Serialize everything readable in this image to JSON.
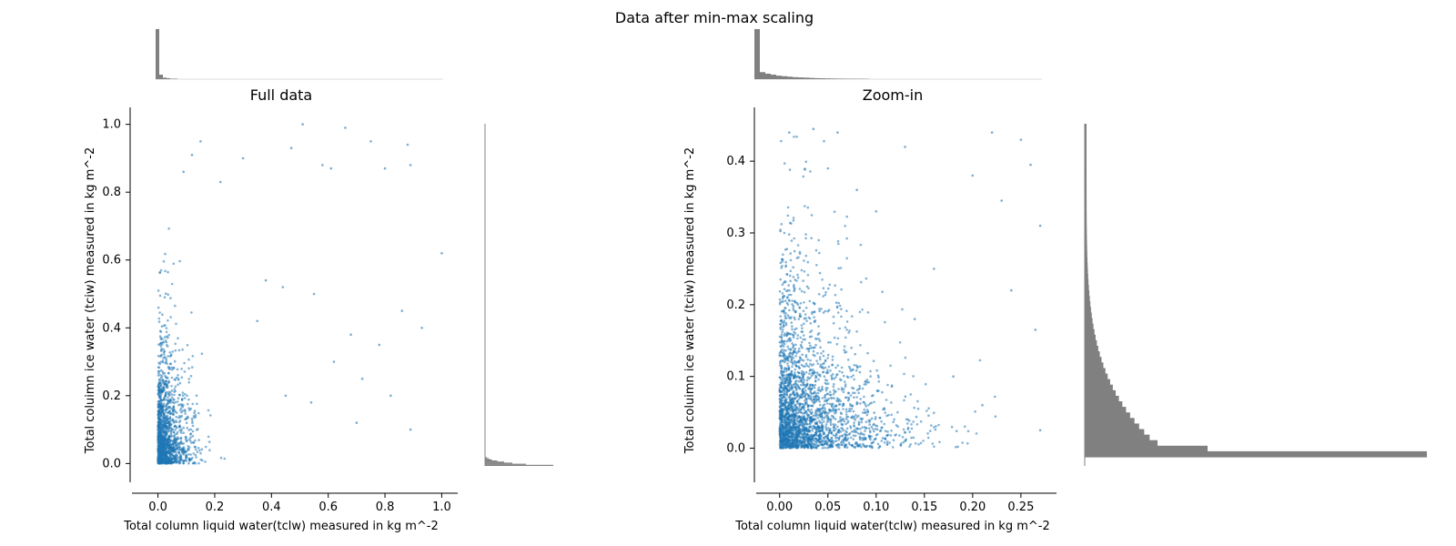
{
  "figure": {
    "suptitle": "Data after min-max scaling",
    "colors": {
      "points": "#1f77b4",
      "hist": "#808080"
    }
  },
  "chart_data": [
    {
      "type": "scatter",
      "title": "Full data",
      "xlabel": "Total column liquid water(tclw) measured in kg m^-2",
      "ylabel": "Total coluimn ice water (tciw) measured in kg m^-2",
      "xlim": [
        -0.05,
        1.05
      ],
      "ylim": [
        -0.05,
        1.05
      ],
      "xticks": [
        0.0,
        0.2,
        0.4,
        0.6,
        0.8,
        1.0
      ],
      "yticks": [
        0.0,
        0.2,
        0.4,
        0.6,
        0.8,
        1.0
      ],
      "xtick_labels": [
        "0.0",
        "0.2",
        "0.4",
        "0.6",
        "0.8",
        "1.0"
      ],
      "ytick_labels": [
        "0.0",
        "0.2",
        "0.4",
        "0.6",
        "0.8",
        "1.0"
      ],
      "grid": false,
      "points": [
        [
          0.51,
          1.0
        ],
        [
          0.66,
          0.99
        ],
        [
          0.75,
          0.95
        ],
        [
          0.88,
          0.94
        ],
        [
          0.47,
          0.93
        ],
        [
          0.58,
          0.88
        ],
        [
          0.61,
          0.87
        ],
        [
          0.8,
          0.87
        ],
        [
          0.89,
          0.88
        ],
        [
          1.0,
          0.62
        ],
        [
          0.93,
          0.4
        ],
        [
          0.86,
          0.45
        ],
        [
          0.82,
          0.2
        ],
        [
          0.89,
          0.1
        ],
        [
          0.7,
          0.12
        ],
        [
          0.15,
          0.95
        ],
        [
          0.12,
          0.91
        ],
        [
          0.09,
          0.86
        ],
        [
          0.3,
          0.9
        ],
        [
          0.22,
          0.83
        ],
        [
          0.38,
          0.54
        ],
        [
          0.44,
          0.52
        ],
        [
          0.55,
          0.5
        ],
        [
          0.35,
          0.42
        ],
        [
          0.62,
          0.3
        ],
        [
          0.68,
          0.38
        ],
        [
          0.72,
          0.25
        ],
        [
          0.54,
          0.18
        ],
        [
          0.45,
          0.2
        ],
        [
          0.78,
          0.35
        ]
      ],
      "bulk": {
        "count": 1500,
        "x_scale": 0.035,
        "y_scale": 0.11
      },
      "marginal_x_hist": [
        100,
        9,
        3,
        2,
        1,
        1
      ],
      "marginal_y_hist": [
        3,
        6,
        10,
        18,
        28,
        40,
        60,
        100
      ]
    },
    {
      "type": "scatter",
      "title": "Zoom-in",
      "xlabel": "Total column liquid water(tclw) measured in kg m^-2",
      "ylabel": "Total coluimn ice water (tciw) measured in kg m^-2",
      "xlim": [
        -0.012,
        0.285
      ],
      "ylim": [
        -0.045,
        0.475
      ],
      "xticks": [
        0.0,
        0.05,
        0.1,
        0.15,
        0.2,
        0.25
      ],
      "yticks": [
        0.0,
        0.1,
        0.2,
        0.3,
        0.4
      ],
      "xtick_labels": [
        "0.00",
        "0.05",
        "0.10",
        "0.15",
        "0.20",
        "0.25"
      ],
      "ytick_labels": [
        "0.0",
        "0.1",
        "0.2",
        "0.3",
        "0.4"
      ],
      "grid": false,
      "points": [
        [
          0.01,
          0.44
        ],
        [
          0.035,
          0.445
        ],
        [
          0.06,
          0.44
        ],
        [
          0.22,
          0.44
        ],
        [
          0.25,
          0.43
        ],
        [
          0.26,
          0.395
        ],
        [
          0.27,
          0.31
        ],
        [
          0.23,
          0.345
        ],
        [
          0.2,
          0.38
        ],
        [
          0.13,
          0.42
        ],
        [
          0.1,
          0.33
        ],
        [
          0.16,
          0.25
        ],
        [
          0.24,
          0.22
        ],
        [
          0.265,
          0.165
        ],
        [
          0.27,
          0.025
        ],
        [
          0.18,
          0.1
        ],
        [
          0.21,
          0.06
        ],
        [
          0.08,
          0.36
        ],
        [
          0.05,
          0.39
        ],
        [
          0.14,
          0.18
        ]
      ],
      "bulk": {
        "count": 2600,
        "x_scale": 0.035,
        "y_scale": 0.075
      },
      "marginal_x_hist": [
        100,
        14,
        11,
        9,
        7,
        6,
        5,
        4,
        3.5,
        3,
        2.5,
        2,
        1.8,
        1.5,
        1.3,
        1.1,
        1,
        0.9,
        0.8,
        0.7,
        0.6
      ],
      "marginal_y_hist": [
        0,
        0,
        0,
        0,
        0,
        0,
        0,
        0,
        0,
        0,
        0,
        0,
        0,
        0,
        0,
        0,
        1
      ]
    }
  ]
}
